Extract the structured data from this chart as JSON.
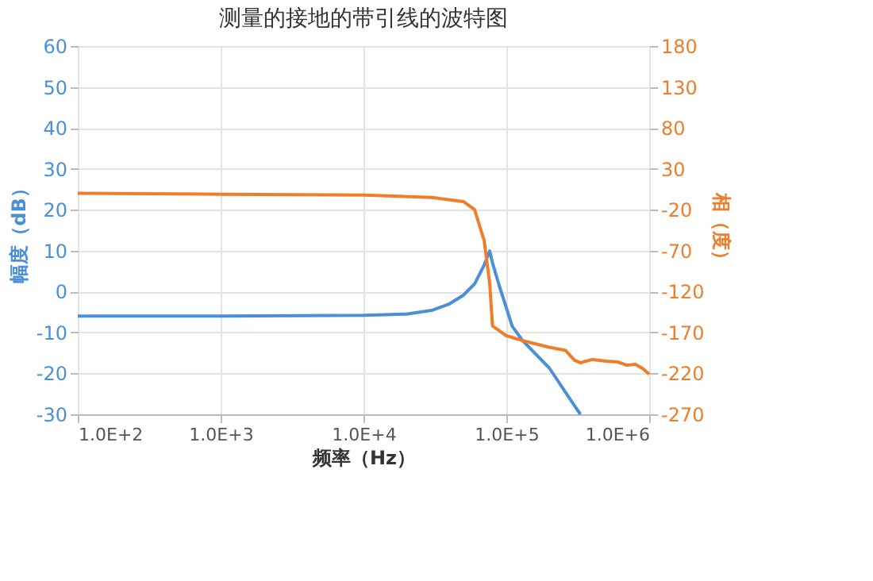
{
  "chart_data": {
    "type": "line",
    "title": "测量的接地的带引线的波特图",
    "xlabel": "频率（Hz）",
    "ylabel": "幅度（dB）",
    "y2label": "相（度）",
    "log": "x",
    "xlim": [
      100,
      1000000
    ],
    "xticks": [
      {
        "value": 100,
        "label": "1.0E+2"
      },
      {
        "value": 1000,
        "label": "1.0E+3"
      },
      {
        "value": 10000,
        "label": "1.0E+4"
      },
      {
        "value": 100000,
        "label": "1.0E+5"
      },
      {
        "value": 1000000,
        "label": "1.0E+6"
      }
    ],
    "ylim": [
      -30,
      60
    ],
    "yticks": [
      -30,
      -20,
      -10,
      0,
      10,
      20,
      30,
      40,
      50,
      60
    ],
    "y2lim": [
      -270,
      180
    ],
    "y2ticks": [
      -270,
      -220,
      -170,
      -120,
      -70,
      -20,
      30,
      80,
      130,
      180
    ],
    "grid": true,
    "legend": false,
    "line_style": "solid",
    "marker": "none",
    "series": [
      {
        "color": "#4a90d9",
        "x": [
          100,
          1000,
          10000,
          20000,
          30000,
          40000,
          50000,
          60000,
          70000,
          76500,
          80000,
          90000,
          100000,
          110000,
          130000,
          200000,
          300000,
          330000
        ],
        "values": [
          -6,
          -6,
          -5.8,
          -5.5,
          -4.6,
          -3,
          -0.9,
          1.9,
          6.5,
          9.9,
          7,
          1,
          -4,
          -8.5,
          -12,
          -18.7,
          -27.9,
          -30
        ]
      },
      {
        "color": "#f07d2a",
        "axis": "y2",
        "x": [
          100,
          1000,
          10000,
          30000,
          50000,
          60000,
          70000,
          76500,
          80000,
          100000,
          130000,
          200000,
          260000,
          300000,
          330000,
          400000,
          500000,
          600000,
          700000,
          800000,
          900000,
          1000000
        ],
        "values": [
          0,
          -1,
          -2,
          -5,
          -10,
          -20,
          -58,
          -110,
          -162,
          -174,
          -180,
          -188,
          -192,
          -204,
          -207,
          -203,
          -205,
          -206,
          -210,
          -209,
          -214,
          -221
        ]
      }
    ]
  }
}
